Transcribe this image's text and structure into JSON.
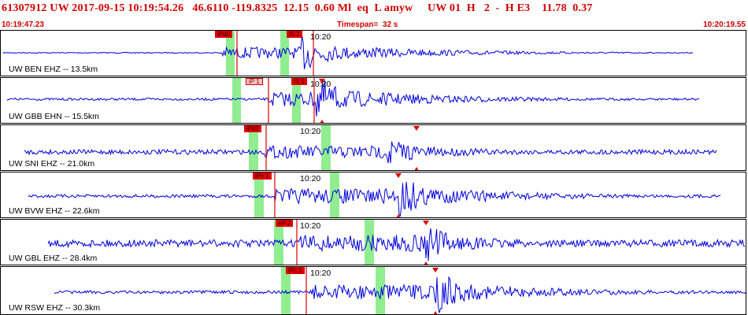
{
  "header": {
    "title": "61307912 UW 2017-09-15 10:19:54.26   46.6110 -119.8325  12.15  0.60 Ml  eq  L amyw     UW 01  H   2  -  H E3    11.78  0.37",
    "start_time": "10:19:47.23",
    "timespan": "Timespan=  32 s",
    "end_time": "10:20:19.55"
  },
  "colors": {
    "trace": "#0000dd",
    "pick": "#e00000",
    "window": "#90ee90",
    "title": "#d40000"
  },
  "traces": [
    {
      "station": "UW BEN EHZ -- 13.5km",
      "minute_label": "10:20",
      "picks": [
        {
          "label": "iPd0",
          "style": "hi"
        },
        {
          "label": "iS 1",
          "style": "hi"
        }
      ]
    },
    {
      "station": "UW GBB EHN -- 15.5km",
      "minute_label": "10:20",
      "picks": [
        {
          "label": "iP 1",
          "style": "lo"
        },
        {
          "label": "iS 1",
          "style": "hi"
        }
      ]
    },
    {
      "station": "UW SNI EHZ -- 21.0km",
      "minute_label": "10:20",
      "picks": [
        {
          "label": "iPd1",
          "style": "hi"
        }
      ]
    },
    {
      "station": "UW BVW EHZ -- 22.6km",
      "minute_label": "10:20",
      "picks": [
        {
          "label": "iPc 1",
          "style": "hi"
        }
      ]
    },
    {
      "station": "UW GBL EHZ -- 28.4km",
      "minute_label": "10:20",
      "picks": [
        {
          "label": "eP 2",
          "style": "hi"
        }
      ]
    },
    {
      "station": "UW RSW EHZ -- 30.3km",
      "minute_label": "10:20",
      "picks": [
        {
          "label": "iPc 1",
          "style": "hi"
        }
      ]
    }
  ]
}
